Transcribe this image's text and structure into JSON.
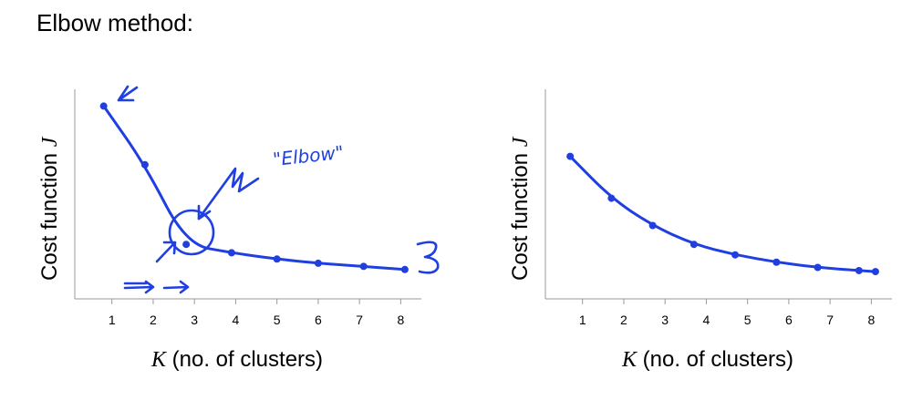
{
  "title": "Elbow method:",
  "ink_color": "#1f3fe0",
  "chart_data": [
    {
      "type": "line",
      "ylabel_text": "Cost function ",
      "ylabel_symbol": "J",
      "xlabel_symbol": "K",
      "xlabel_text": " (no. of clusters)",
      "xlim": [
        0.1,
        8.5
      ],
      "ylim": [
        0,
        100
      ],
      "x_ticks": [
        "1",
        "2",
        "3",
        "4",
        "5",
        "6",
        "7",
        "8"
      ],
      "x": [
        0.8,
        1.8,
        2.8,
        3.9,
        5,
        6,
        7.1,
        8.1
      ],
      "values": [
        92,
        64,
        26,
        22,
        19,
        17,
        15.5,
        14
      ],
      "annotation": "\"Elbow\"",
      "grid": false
    },
    {
      "type": "line",
      "ylabel_text": "Cost function ",
      "ylabel_symbol": "J",
      "xlabel_symbol": "K",
      "xlabel_text": " (no. of clusters)",
      "xlim": [
        0.1,
        8.5
      ],
      "ylim": [
        0,
        100
      ],
      "x_ticks": [
        "1",
        "2",
        "3",
        "4",
        "5",
        "6",
        "7",
        "8"
      ],
      "x": [
        0.7,
        1.7,
        2.7,
        3.7,
        4.7,
        5.7,
        6.7,
        7.7,
        8.1
      ],
      "values": [
        68,
        48,
        35,
        26,
        21,
        17.5,
        15,
        13.5,
        13
      ],
      "grid": false
    }
  ]
}
